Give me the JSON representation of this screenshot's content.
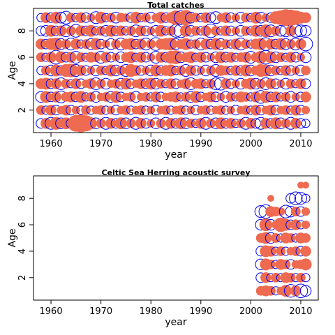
{
  "colors": {
    "positive": "#EE6A50",
    "negative": "#0000EE",
    "axis": "#000000"
  },
  "chart_data": [
    {
      "type": "bubble",
      "title": "Total catches",
      "xlabel": "year",
      "ylabel": "Age",
      "xlim": [
        1956.5,
        2013.5
      ],
      "ylim": [
        0.3,
        9.7
      ],
      "xticks": [
        1960,
        1970,
        1980,
        1990,
        2000,
        2010
      ],
      "yticks": [
        2,
        4,
        6,
        8
      ],
      "x_years": [
        1958,
        2011
      ],
      "ages": [
        1,
        2,
        3,
        4,
        5,
        6,
        7,
        8,
        9
      ],
      "encoding": "filled red = positive residual, open blue = negative residual, area proportional to magnitude",
      "residuals": {
        "9": [
          -0.3,
          0.5,
          -0.4,
          0.6,
          -0.5,
          -0.7,
          0.4,
          -0.3,
          0.5,
          -0.4,
          0.3,
          -0.6,
          0.6,
          -0.3,
          0.4,
          -0.5,
          0.4,
          0.3,
          -0.4,
          0.6,
          -0.3,
          0.4,
          -0.5,
          0.3,
          0.6,
          -0.4,
          0.5,
          0.9,
          -0.8,
          1.0,
          -0.5,
          0.4,
          -0.3,
          0.5,
          -0.4,
          -0.6,
          0.3,
          0.5,
          -0.4,
          0.3,
          -0.5,
          0.4,
          -0.3,
          0.6,
          -0.5,
          0.3,
          -0.4,
          0.7,
          0.9,
          1.2,
          1.1,
          0.9,
          0.6,
          0.5
        ],
        "8": [
          -0.4,
          -0.5,
          0.6,
          -0.4,
          0.5,
          -0.6,
          0.4,
          -0.7,
          0.5,
          -0.4,
          0.6,
          -0.3,
          0.4,
          -0.5,
          0.6,
          -0.4,
          0.5,
          -0.3,
          0.4,
          -0.6,
          0.5,
          -0.4,
          0.3,
          -0.5,
          0.6,
          -0.3,
          0.4,
          -0.7,
          -0.8,
          0.6,
          -0.5,
          0.4,
          -0.3,
          0.5,
          -0.8,
          0.4,
          -0.3,
          0.5,
          -0.4,
          0.3,
          -0.5,
          0.4,
          -0.3,
          0.6,
          -0.5,
          0.7,
          -0.6,
          0.4,
          -0.5,
          -0.6,
          0.5,
          -0.7,
          -0.6,
          -0.5
        ],
        "7": [
          0.5,
          -0.4,
          0.6,
          0.7,
          -0.5,
          0.4,
          -0.6,
          0.5,
          -0.3,
          0.4,
          -0.5,
          0.6,
          -0.4,
          0.3,
          -0.5,
          0.4,
          -0.6,
          0.5,
          0.6,
          -0.4,
          0.5,
          -0.6,
          0.4,
          -0.7,
          0.5,
          0.6,
          0.7,
          -0.5,
          0.4,
          0.6,
          -0.3,
          0.4,
          -0.6,
          0.5,
          -0.4,
          0.6,
          -0.5,
          0.4,
          -0.3,
          0.5,
          -0.6,
          0.4,
          -0.3,
          0.5,
          0.6,
          -0.7,
          0.5,
          -0.4,
          0.6,
          -0.5,
          0.4,
          -0.6,
          0.5,
          -0.8
        ],
        "6": [
          0.4,
          -0.3,
          0.5,
          -0.8,
          0.6,
          -0.4,
          0.5,
          -0.6,
          0.4,
          -0.3,
          0.5,
          0.4,
          -0.6,
          0.5,
          -0.4,
          0.3,
          -0.5,
          0.4,
          0.6,
          -0.3,
          0.5,
          -0.4,
          0.3,
          -0.6,
          0.5,
          -0.4,
          0.7,
          0.8,
          -0.5,
          0.4,
          0.6,
          -0.3,
          0.5,
          -0.4,
          0.3,
          -0.5,
          0.6,
          -0.4,
          0.5,
          -0.3,
          0.4,
          0.5,
          -0.6,
          0.4,
          0.7,
          -0.8,
          0.6,
          -0.5,
          0.4,
          -0.3,
          0.5,
          -0.4,
          0.3,
          -0.5
        ],
        "5": [
          -0.3,
          0.4,
          -0.5,
          0.6,
          -0.4,
          0.7,
          0.8,
          -0.6,
          0.5,
          -0.4,
          0.3,
          -0.5,
          0.4,
          -0.3,
          0.6,
          -0.5,
          0.4,
          -0.6,
          0.7,
          0.5,
          -0.4,
          0.3,
          -0.5,
          0.6,
          -0.4,
          0.5,
          0.6,
          -0.3,
          0.4,
          -0.6,
          0.5,
          -0.4,
          0.3,
          -0.5,
          0.4,
          -0.6,
          0.5,
          0.4,
          -0.3,
          0.5,
          -0.4,
          0.6,
          -0.5,
          0.4,
          0.7,
          0.6,
          -0.5,
          0.4,
          -0.3,
          0.5,
          -0.4,
          0.3,
          -0.5,
          0.4
        ],
        "4": [
          0.5,
          0.6,
          -0.4,
          0.5,
          -0.6,
          0.4,
          -0.3,
          0.5,
          -0.4,
          0.3,
          0.5,
          -0.6,
          0.4,
          -0.5,
          0.3,
          0.4,
          -0.5,
          0.6,
          -0.4,
          0.3,
          0.5,
          -0.4,
          0.6,
          -0.5,
          0.4,
          -0.3,
          0.5,
          -0.4,
          0.3,
          0.5,
          -0.6,
          0.4,
          0.5,
          -0.3,
          0.4,
          -0.6,
          -0.7,
          0.5,
          -0.4,
          0.3,
          -0.5,
          0.4,
          0.6,
          -0.5,
          0.4,
          -0.6,
          0.5,
          -0.4,
          0.3,
          -0.5,
          0.4,
          -0.3,
          0.5,
          -0.4
        ],
        "3": [
          -0.5,
          0.6,
          -0.4,
          0.5,
          -0.6,
          0.4,
          0.5,
          -0.4,
          0.6,
          -0.3,
          0.4,
          -0.5,
          0.3,
          0.4,
          -0.5,
          0.6,
          -0.4,
          0.3,
          0.4,
          -0.5,
          0.3,
          0.4,
          -0.3,
          0.5,
          -0.4,
          0.3,
          0.4,
          0.5,
          -0.3,
          0.4,
          -0.5,
          0.6,
          -0.4,
          0.3,
          0.5,
          -0.4,
          0.3,
          -0.5,
          0.4,
          -0.3,
          0.5,
          0.4,
          -0.3,
          0.5,
          -0.7,
          0.6,
          -0.4,
          0.5,
          -0.3,
          0.4,
          -0.5,
          0.3,
          -0.4,
          0.5
        ],
        "2": [
          0.4,
          -0.3,
          0.5,
          -0.4,
          0.3,
          0.5,
          -0.4,
          0.3,
          -0.3,
          0.4,
          -0.3,
          0.3,
          0.4,
          -0.3,
          0.3,
          -0.4,
          0.3,
          0.4,
          -0.3,
          0.3,
          0.4,
          -0.3,
          0.3,
          -0.4,
          0.3,
          0.4,
          -0.3,
          0.3,
          0.4,
          -0.3,
          0.3,
          -0.4,
          0.3,
          0.4,
          -0.3,
          0.3,
          0.4,
          -0.3,
          0.3,
          -0.4,
          0.3,
          0.4,
          -0.3,
          0.5,
          -0.4,
          0.3,
          0.5,
          -0.4,
          0.3,
          0.4,
          -0.3,
          0.5,
          -0.4,
          0.3
        ],
        "1": [
          -0.4,
          0.5,
          -0.6,
          0.7,
          -0.5,
          0.6,
          -0.4,
          1.2,
          1.4,
          1.1,
          0.6,
          -0.5,
          0.4,
          -0.6,
          0.5,
          -0.4,
          0.6,
          -0.5,
          0.4,
          -0.6,
          0.5,
          -0.4,
          0.3,
          -0.5,
          0.4,
          -0.6,
          0.5,
          -0.4,
          0.6,
          -0.5,
          0.4,
          -0.3,
          0.5,
          -0.6,
          0.4,
          -0.5,
          0.6,
          -0.4,
          0.5,
          -0.3,
          0.4,
          -0.6,
          0.5,
          -0.4,
          -0.6,
          0.5,
          -0.4,
          0.6,
          -0.5,
          0.4,
          -0.6,
          0.5,
          -0.4,
          -0.3
        ]
      }
    },
    {
      "type": "bubble",
      "title": "Celtic Sea Herring acoustic survey",
      "xlabel": "year",
      "ylabel": "Age",
      "xlim": [
        1956.5,
        2013.5
      ],
      "ylim": [
        0.3,
        9.7
      ],
      "xticks": [
        1960,
        1970,
        1980,
        1990,
        2000,
        2010
      ],
      "yticks": [
        2,
        4,
        6,
        8
      ],
      "x_years": [
        2002,
        2011
      ],
      "ages": [
        1,
        2,
        3,
        4,
        5,
        6,
        7,
        8,
        9
      ],
      "encoding": "filled red = positive residual, open blue = negative residual, area proportional to magnitude",
      "residuals": {
        "9": [
          null,
          null,
          null,
          null,
          null,
          null,
          null,
          null,
          0.2,
          0.2
        ],
        "8": [
          null,
          null,
          0.2,
          null,
          null,
          null,
          -0.4,
          -0.7,
          -0.6,
          -0.3
        ],
        "7": [
          -0.6,
          -0.8,
          0.5,
          0.4,
          0.3,
          -0.7,
          -0.5,
          0.4,
          -0.4,
          0.3
        ],
        "6": [
          -0.5,
          0.7,
          -0.5,
          0.3,
          0.9,
          0.6,
          -0.4,
          0.5,
          -0.3,
          0.3
        ],
        "5": [
          0.4,
          0.6,
          -0.5,
          0.4,
          -0.3,
          0.5,
          0.4,
          -0.3,
          0.5,
          0.4
        ],
        "4": [
          -0.4,
          0.6,
          0.5,
          -0.3,
          0.4,
          -0.3,
          0.3,
          0.4,
          -0.4,
          0.5
        ],
        "3": [
          -0.5,
          0.6,
          0.4,
          -0.3,
          0.5,
          0.4,
          -0.4,
          0.3,
          0.4,
          0.6
        ],
        "2": [
          -0.4,
          0.5,
          -0.3,
          0.4,
          -0.3,
          0.5,
          0.4,
          -0.3,
          0.4,
          -0.3
        ],
        "1": [
          0.4,
          0.5,
          0.4,
          -0.3,
          0.3,
          0.6,
          -0.7,
          0.5,
          -0.8,
          -0.5
        ]
      }
    }
  ]
}
